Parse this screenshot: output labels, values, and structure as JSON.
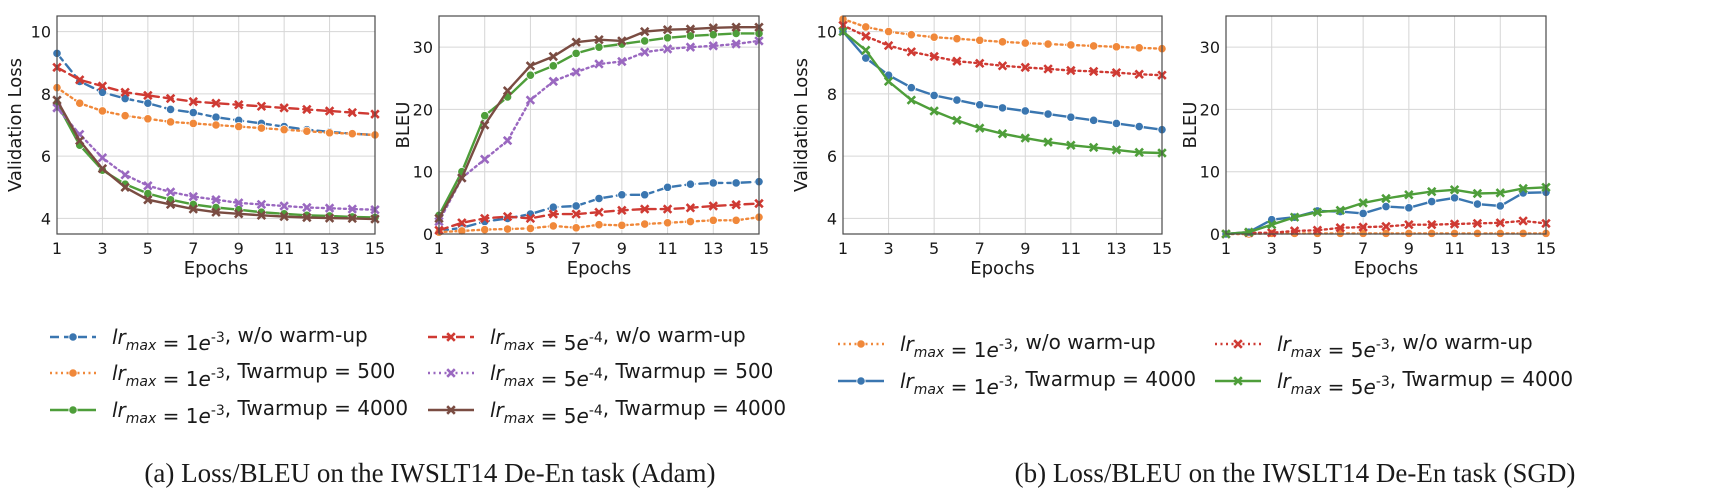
{
  "captions": {
    "a": "(a) Loss/BLEU on the IWSLT14 De-En task (Adam)",
    "b": "(b) Loss/BLEU on the IWSLT14 De-En task (SGD)"
  },
  "legends": {
    "a": [
      {
        "series": "a1",
        "label": "lr_max = 1e^{-3}, w/o warm-up"
      },
      {
        "series": "a4",
        "label": "lr_max = 5e^{-4}, w/o warm-up"
      },
      {
        "series": "a2",
        "label": "lr_max = 1e^{-3}, T_warmup = 500"
      },
      {
        "series": "a5",
        "label": "lr_max = 5e^{-4}, T_warmup = 500"
      },
      {
        "series": "a3",
        "label": "lr_max = 1e^{-3}, T_warmup = 4000"
      },
      {
        "series": "a6",
        "label": "lr_max = 5e^{-4}, T_warmup = 4000"
      }
    ],
    "b": [
      {
        "series": "b1",
        "label": "lr_max = 1e^{-3}, w/o warm-up"
      },
      {
        "series": "b3",
        "label": "lr_max = 5e^{-3}, w/o warm-up"
      },
      {
        "series": "b2",
        "label": "lr_max = 1e^{-3}, T_warmup = 4000"
      },
      {
        "series": "b4",
        "label": "lr_max = 5e^{-3}, T_warmup = 4000"
      }
    ]
  },
  "series_styles": {
    "a1": {
      "color": "#3a76b0",
      "dash": "dashed",
      "marker": "circle"
    },
    "a2": {
      "color": "#f0883a",
      "dash": "dotted",
      "marker": "circle"
    },
    "a3": {
      "color": "#4e9e3a",
      "dash": "solid",
      "marker": "circle"
    },
    "a4": {
      "color": "#cf3a33",
      "dash": "dashed",
      "marker": "x"
    },
    "a5": {
      "color": "#9a68c0",
      "dash": "dotted",
      "marker": "x"
    },
    "a6": {
      "color": "#7a4c42",
      "dash": "solid",
      "marker": "x"
    },
    "b1": {
      "color": "#f0883a",
      "dash": "dotted",
      "marker": "circle"
    },
    "b2": {
      "color": "#3a76b0",
      "dash": "solid",
      "marker": "circle"
    },
    "b3": {
      "color": "#cf3a33",
      "dash": "dotted",
      "marker": "x"
    },
    "b4": {
      "color": "#4e9e3a",
      "dash": "solid",
      "marker": "x"
    }
  },
  "chart_data": [
    {
      "id": "adam-loss",
      "type": "line",
      "xlabel": "Epochs",
      "ylabel": "Validation Loss",
      "x": [
        1,
        2,
        3,
        4,
        5,
        6,
        7,
        8,
        9,
        10,
        11,
        12,
        13,
        14,
        15
      ],
      "xlim": [
        1,
        15
      ],
      "ylim": [
        3.5,
        10.5
      ],
      "xticks": [
        1,
        3,
        5,
        7,
        9,
        11,
        13,
        15
      ],
      "yticks": [
        4,
        6,
        8,
        10
      ],
      "grid": true,
      "series": [
        {
          "key": "a1",
          "values": [
            9.3,
            8.4,
            8.05,
            7.85,
            7.7,
            7.5,
            7.4,
            7.25,
            7.15,
            7.05,
            6.95,
            6.85,
            6.78,
            6.72,
            6.68
          ]
        },
        {
          "key": "a2",
          "values": [
            8.2,
            7.7,
            7.45,
            7.3,
            7.2,
            7.1,
            7.05,
            7.0,
            6.95,
            6.9,
            6.85,
            6.8,
            6.75,
            6.72,
            6.68
          ]
        },
        {
          "key": "a3",
          "values": [
            7.7,
            6.35,
            5.55,
            5.1,
            4.8,
            4.6,
            4.45,
            4.35,
            4.28,
            4.2,
            4.15,
            4.1,
            4.08,
            4.05,
            4.03
          ]
        },
        {
          "key": "a4",
          "values": [
            8.85,
            8.45,
            8.25,
            8.05,
            7.95,
            7.85,
            7.75,
            7.7,
            7.65,
            7.6,
            7.55,
            7.5,
            7.45,
            7.4,
            7.35
          ]
        },
        {
          "key": "a5",
          "values": [
            7.55,
            6.7,
            5.95,
            5.4,
            5.05,
            4.85,
            4.7,
            4.6,
            4.5,
            4.45,
            4.4,
            4.35,
            4.33,
            4.3,
            4.28
          ]
        },
        {
          "key": "a6",
          "values": [
            7.8,
            6.5,
            5.6,
            5.0,
            4.6,
            4.45,
            4.3,
            4.2,
            4.15,
            4.1,
            4.06,
            4.03,
            4.01,
            4.0,
            3.98
          ]
        }
      ]
    },
    {
      "id": "adam-bleu",
      "type": "line",
      "xlabel": "Epochs",
      "ylabel": "BLEU",
      "x": [
        1,
        2,
        3,
        4,
        5,
        6,
        7,
        8,
        9,
        10,
        11,
        12,
        13,
        14,
        15
      ],
      "xlim": [
        1,
        15
      ],
      "ylim": [
        0,
        35
      ],
      "xticks": [
        1,
        3,
        5,
        7,
        9,
        11,
        13,
        15
      ],
      "yticks": [
        0,
        10,
        20,
        30
      ],
      "grid": true,
      "series": [
        {
          "key": "a1",
          "values": [
            0.5,
            1.0,
            2.0,
            2.5,
            3.2,
            4.3,
            4.5,
            5.7,
            6.3,
            6.3,
            7.5,
            8.0,
            8.2,
            8.2,
            8.4
          ]
        },
        {
          "key": "a2",
          "values": [
            0.3,
            0.5,
            0.7,
            0.8,
            0.9,
            1.3,
            1.0,
            1.5,
            1.4,
            1.6,
            1.8,
            2.0,
            2.2,
            2.2,
            2.7
          ]
        },
        {
          "key": "a3",
          "values": [
            3.0,
            10.0,
            19.0,
            22.0,
            25.5,
            27.0,
            29.0,
            30.0,
            30.5,
            31.0,
            31.5,
            31.8,
            32.0,
            32.2,
            32.2
          ]
        },
        {
          "key": "a4",
          "values": [
            0.6,
            1.8,
            2.5,
            2.8,
            2.5,
            3.2,
            3.2,
            3.5,
            3.8,
            4.0,
            4.0,
            4.2,
            4.5,
            4.7,
            4.9
          ]
        },
        {
          "key": "a5",
          "values": [
            2.0,
            9.0,
            12.0,
            15.0,
            21.5,
            24.5,
            26.0,
            27.3,
            27.7,
            29.2,
            29.7,
            30.0,
            30.2,
            30.5,
            31.0
          ]
        },
        {
          "key": "a6",
          "values": [
            2.5,
            9.0,
            17.5,
            23.0,
            27.0,
            28.5,
            30.8,
            31.2,
            31.0,
            32.5,
            32.8,
            32.9,
            33.1,
            33.2,
            33.2
          ]
        }
      ]
    },
    {
      "id": "sgd-loss",
      "type": "line",
      "xlabel": "Epochs",
      "ylabel": "Validation Loss",
      "x": [
        1,
        2,
        3,
        4,
        5,
        6,
        7,
        8,
        9,
        10,
        11,
        12,
        13,
        14,
        15
      ],
      "xlim": [
        1,
        15
      ],
      "ylim": [
        3.5,
        10.5
      ],
      "xticks": [
        1,
        3,
        5,
        7,
        9,
        11,
        13,
        15
      ],
      "yticks": [
        4,
        6,
        8,
        10
      ],
      "grid": true,
      "series": [
        {
          "key": "b1",
          "values": [
            10.4,
            10.15,
            10.0,
            9.9,
            9.82,
            9.77,
            9.72,
            9.67,
            9.63,
            9.6,
            9.57,
            9.54,
            9.51,
            9.48,
            9.45
          ]
        },
        {
          "key": "b2",
          "values": [
            10.0,
            9.15,
            8.6,
            8.2,
            7.95,
            7.8,
            7.65,
            7.55,
            7.45,
            7.35,
            7.25,
            7.15,
            7.05,
            6.95,
            6.85
          ]
        },
        {
          "key": "b3",
          "values": [
            10.2,
            9.85,
            9.55,
            9.35,
            9.2,
            9.05,
            8.98,
            8.9,
            8.85,
            8.8,
            8.75,
            8.72,
            8.68,
            8.63,
            8.6
          ]
        },
        {
          "key": "b4",
          "values": [
            10.0,
            9.4,
            8.4,
            7.8,
            7.45,
            7.15,
            6.9,
            6.72,
            6.58,
            6.45,
            6.35,
            6.28,
            6.2,
            6.12,
            6.1
          ]
        }
      ]
    },
    {
      "id": "sgd-bleu",
      "type": "line",
      "xlabel": "Epochs",
      "ylabel": "BLEU",
      "x": [
        1,
        2,
        3,
        4,
        5,
        6,
        7,
        8,
        9,
        10,
        11,
        12,
        13,
        14,
        15
      ],
      "xlim": [
        1,
        15
      ],
      "ylim": [
        0,
        35
      ],
      "xticks": [
        1,
        3,
        5,
        7,
        9,
        11,
        13,
        15
      ],
      "yticks": [
        0,
        10,
        20,
        30
      ],
      "grid": true,
      "series": [
        {
          "key": "b1",
          "values": [
            0.0,
            0.0,
            0.1,
            0.1,
            0.1,
            0.1,
            0.1,
            0.1,
            0.1,
            0.1,
            0.1,
            0.1,
            0.1,
            0.1,
            0.1
          ]
        },
        {
          "key": "b2",
          "values": [
            0.0,
            0.3,
            2.3,
            2.7,
            3.7,
            3.6,
            3.3,
            4.4,
            4.2,
            5.2,
            5.8,
            4.8,
            4.5,
            6.6,
            6.7
          ]
        },
        {
          "key": "b3",
          "values": [
            0.0,
            0.2,
            0.2,
            0.5,
            0.6,
            1.0,
            1.1,
            1.2,
            1.5,
            1.5,
            1.6,
            1.7,
            1.8,
            2.1,
            1.7
          ]
        },
        {
          "key": "b4",
          "values": [
            0.0,
            0.3,
            1.5,
            2.7,
            3.5,
            3.8,
            5.0,
            5.7,
            6.3,
            6.8,
            7.1,
            6.5,
            6.6,
            7.3,
            7.5
          ]
        }
      ]
    }
  ]
}
